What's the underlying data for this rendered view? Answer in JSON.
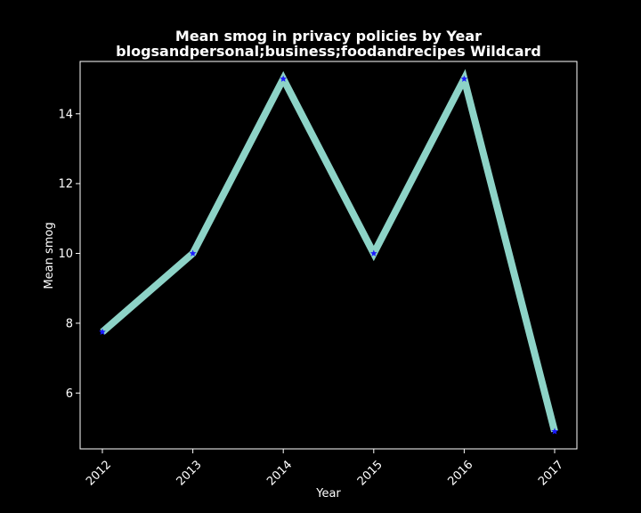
{
  "chart_data": {
    "type": "line",
    "title": "Mean smog in privacy policies by Year\nblogsandpersonal;business;foodandrecipes Wildcard",
    "title_lines": [
      "Mean smog in privacy policies by Year",
      "blogsandpersonal;business;foodandrecipes Wildcard"
    ],
    "xlabel": "Year",
    "ylabel": "Mean smog",
    "x": [
      "2012",
      "2013",
      "2014",
      "2015",
      "2016",
      "2017"
    ],
    "series": [
      {
        "values": [
          7.75,
          10.0,
          15.0,
          10.0,
          15.0,
          4.9
        ]
      }
    ],
    "ylim": [
      4.4,
      15.5
    ],
    "yticks": [
      6,
      8,
      10,
      12,
      14
    ],
    "xtick_rotation_deg": 45,
    "grid": false,
    "legend": "none",
    "colors": {
      "background": "#000000",
      "axes_frame": "#ffffff",
      "line": "#8dd3c7",
      "marker": "#1a1aff",
      "text": "#ffffff"
    },
    "marker": "star"
  }
}
